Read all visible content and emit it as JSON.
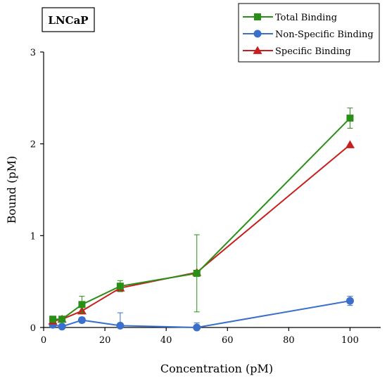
{
  "chart_data": {
    "type": "line",
    "panel_label": "LNCaP",
    "xlabel": "Concentration (pM)",
    "ylabel": "Bound (pM)",
    "xlim": [
      0,
      110
    ],
    "ylim": [
      0,
      3
    ],
    "xticks": [
      0,
      20,
      40,
      60,
      80,
      100
    ],
    "yticks": [
      0,
      1,
      2,
      3
    ],
    "legend_position": "top-right",
    "grid": false,
    "series": [
      {
        "name": "Total Binding",
        "color": "#2a8f17",
        "marker": "square",
        "x": [
          3,
          6,
          12.5,
          25,
          50,
          100
        ],
        "y": [
          0.09,
          0.09,
          0.25,
          0.45,
          0.59,
          2.28
        ],
        "err": [
          0.02,
          0.02,
          0.09,
          0.06,
          0.42,
          0.11
        ]
      },
      {
        "name": "Non-Specific Binding",
        "color": "#3b6fcc",
        "marker": "circle",
        "x": [
          3,
          6,
          12.5,
          25,
          50,
          100
        ],
        "y": [
          0.03,
          0.01,
          0.08,
          0.02,
          0.0,
          0.29
        ],
        "err": [
          0.01,
          0.01,
          0.03,
          0.14,
          0.05,
          0.05
        ]
      },
      {
        "name": "Specific Binding",
        "color": "#c81e1e",
        "marker": "triangle",
        "x": [
          3,
          6,
          12.5,
          25,
          50,
          100
        ],
        "y": [
          0.07,
          0.09,
          0.18,
          0.43,
          0.6,
          1.99
        ],
        "err": [
          0,
          0,
          0,
          0,
          0,
          0
        ]
      }
    ]
  }
}
